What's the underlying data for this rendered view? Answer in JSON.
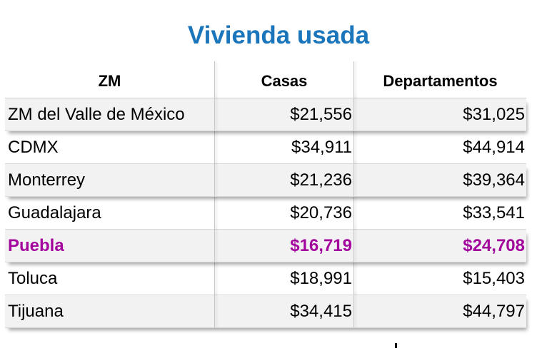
{
  "title": "Vivienda usada",
  "table": {
    "headers": [
      "ZM",
      "Casas",
      "Departamentos"
    ],
    "rows": [
      {
        "zm": "ZM del Valle de México",
        "casas": "$21,556",
        "departamentos": "$31,025"
      },
      {
        "zm": "CDMX",
        "casas": "$34,911",
        "departamentos": "$44,914"
      },
      {
        "zm": "Monterrey",
        "casas": "$21,236",
        "departamentos": "$39,364"
      },
      {
        "zm": "Guadalajara",
        "casas": "$20,736",
        "departamentos": "$33,541"
      },
      {
        "zm": "Puebla",
        "casas": "$16,719",
        "departamentos": "$24,708"
      },
      {
        "zm": "Toluca",
        "casas": "$18,991",
        "departamentos": "$15,403"
      },
      {
        "zm": "Tijuana",
        "casas": "$34,415",
        "departamentos": "$44,797"
      }
    ],
    "highlight_row": "Puebla"
  },
  "colors": {
    "title": "#1b75bb",
    "highlight": "#a3069c",
    "shaded_row": "#f2f2f2"
  }
}
